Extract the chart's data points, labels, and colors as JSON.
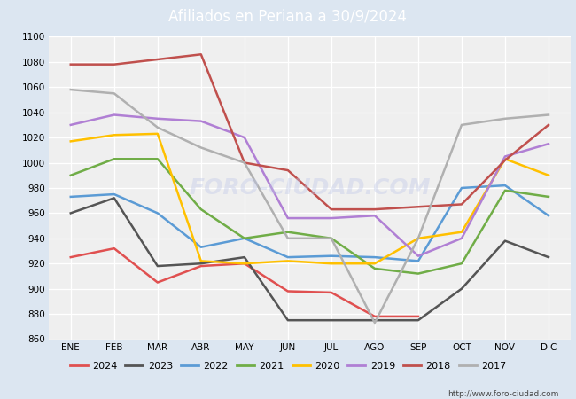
{
  "title": "Afiliados en Periana a 30/9/2024",
  "months": [
    "ENE",
    "FEB",
    "MAR",
    "ABR",
    "MAY",
    "JUN",
    "JUL",
    "AGO",
    "SEP",
    "OCT",
    "NOV",
    "DIC"
  ],
  "ylim": [
    860,
    1100
  ],
  "yticks": [
    860,
    880,
    900,
    920,
    940,
    960,
    980,
    1000,
    1020,
    1040,
    1060,
    1080,
    1100
  ],
  "series": {
    "2024": {
      "color": "#e05050",
      "data": [
        925,
        932,
        905,
        918,
        920,
        898,
        897,
        878,
        878,
        null,
        null,
        null
      ]
    },
    "2023": {
      "color": "#555555",
      "data": [
        960,
        972,
        918,
        920,
        925,
        875,
        875,
        875,
        875,
        900,
        938,
        925
      ]
    },
    "2022": {
      "color": "#5b9bd5",
      "data": [
        973,
        975,
        960,
        933,
        940,
        925,
        926,
        925,
        922,
        980,
        982,
        958
      ]
    },
    "2021": {
      "color": "#70ad47",
      "data": [
        990,
        1003,
        1003,
        963,
        940,
        945,
        940,
        916,
        912,
        920,
        978,
        973
      ]
    },
    "2020": {
      "color": "#ffc000",
      "data": [
        1017,
        1022,
        1023,
        922,
        920,
        922,
        920,
        920,
        940,
        945,
        1003,
        990
      ]
    },
    "2019": {
      "color": "#b07fd4",
      "data": [
        1030,
        1038,
        1035,
        1033,
        1020,
        956,
        956,
        958,
        926,
        940,
        1005,
        1015
      ]
    },
    "2018": {
      "color": "#c0504d",
      "data": [
        1078,
        1078,
        1082,
        1086,
        1000,
        994,
        963,
        963,
        965,
        967,
        1002,
        1030
      ]
    },
    "2017": {
      "color": "#b0b0b0",
      "data": [
        1058,
        1055,
        1028,
        1012,
        1000,
        940,
        940,
        873,
        940,
        1030,
        1035,
        1038
      ]
    }
  },
  "legend_order": [
    "2024",
    "2023",
    "2022",
    "2021",
    "2020",
    "2019",
    "2018",
    "2017"
  ],
  "watermark": "FORO-CIUDAD.COM",
  "url": "http://www.foro-ciudad.com",
  "header_bg": "#4f81bd",
  "footer_bg": "#4f81bd",
  "plot_bg": "#efefef",
  "grid_color": "#ffffff",
  "fig_bg": "#dce6f1"
}
